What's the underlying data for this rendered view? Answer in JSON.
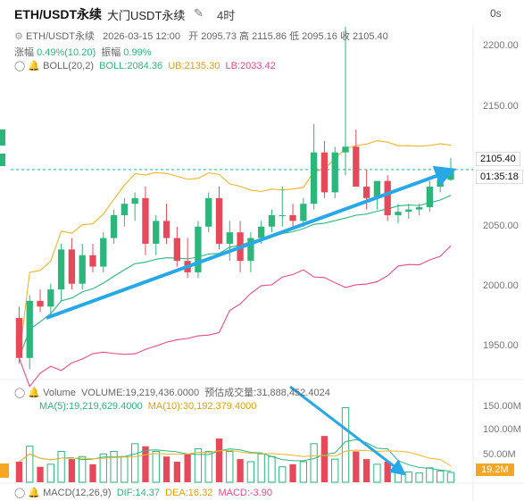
{
  "header": {
    "symbol": "ETH/USDT永续",
    "exchange_label": "大门USDT永续",
    "interval": "4时",
    "seconds_label": "0s",
    "detail_symbol": "ETH/USDT永续",
    "date": "2026-03-15 12:00",
    "ohlc_text": "开 2095.73 高 2115.86 低 2095.16 收 2105.40",
    "change_label": "涨幅",
    "change_value": "0.49%(10.20)",
    "amplitude_label": "振幅",
    "amplitude_value": "0.99%"
  },
  "indicators": {
    "boll_label": "BOLL(20,2)",
    "boll_value": "BOLL:2084.36",
    "ub_value": "UB:2135.30",
    "lb_value": "LB:2033.42",
    "volume_label": "Volume",
    "volume_value": "VOLUME:19,219,436.0000",
    "est_volume": "预估成交量:31,888,452.4024",
    "ma5": "MA(5):19,219,629.4000",
    "ma10": "MA(10):30,192,379.4000",
    "macd_label": "MACD(12,26,9)",
    "dif": "DIF:14.37",
    "dea": "DEA:16.32",
    "macd": "MACD:-3.90"
  },
  "price_axis": {
    "ticks": [
      "2200.00",
      "2150.00",
      "2100.00",
      "2050.00",
      "2000.00",
      "1950.00"
    ],
    "current_price": "2105.40",
    "countdown": "01:35:18"
  },
  "volume_axis": {
    "ticks": [
      "150.00M",
      "100.00M",
      "50.00M"
    ],
    "current_volume": "19.2M"
  },
  "colors": {
    "up": "#2db67c",
    "down": "#e64a5a",
    "boll_mid": "#2db67c",
    "boll_upper": "#f0b429",
    "boll_lower": "#e64a88",
    "arrow": "#29a8e8"
  },
  "chart_data": {
    "type": "candlestick",
    "candles": [
      {
        "o": 1975,
        "h": 1985,
        "l": 1935,
        "c": 1940,
        "v": 40
      },
      {
        "o": 1940,
        "h": 1995,
        "l": 1930,
        "c": 1990,
        "v": 70
      },
      {
        "o": 1990,
        "h": 2000,
        "l": 1980,
        "c": 1985,
        "v": 30
      },
      {
        "o": 1985,
        "h": 2005,
        "l": 1975,
        "c": 2000,
        "v": 35
      },
      {
        "o": 2000,
        "h": 2040,
        "l": 1990,
        "c": 2035,
        "v": 60
      },
      {
        "o": 2035,
        "h": 2045,
        "l": 2000,
        "c": 2005,
        "v": 45
      },
      {
        "o": 2005,
        "h": 2040,
        "l": 2000,
        "c": 2030,
        "v": 50
      },
      {
        "o": 2030,
        "h": 2040,
        "l": 2015,
        "c": 2020,
        "v": 35
      },
      {
        "o": 2020,
        "h": 2050,
        "l": 2015,
        "c": 2045,
        "v": 55
      },
      {
        "o": 2045,
        "h": 2070,
        "l": 2040,
        "c": 2065,
        "v": 60
      },
      {
        "o": 2065,
        "h": 2080,
        "l": 2055,
        "c": 2075,
        "v": 50
      },
      {
        "o": 2075,
        "h": 2085,
        "l": 2060,
        "c": 2080,
        "v": 75
      },
      {
        "o": 2080,
        "h": 2090,
        "l": 2030,
        "c": 2040,
        "v": 70
      },
      {
        "o": 2040,
        "h": 2065,
        "l": 2030,
        "c": 2060,
        "v": 60
      },
      {
        "o": 2060,
        "h": 2075,
        "l": 2040,
        "c": 2045,
        "v": 50
      },
      {
        "o": 2045,
        "h": 2055,
        "l": 2020,
        "c": 2025,
        "v": 40
      },
      {
        "o": 2025,
        "h": 2045,
        "l": 2010,
        "c": 2015,
        "v": 55
      },
      {
        "o": 2015,
        "h": 2060,
        "l": 2010,
        "c": 2055,
        "v": 65
      },
      {
        "o": 2055,
        "h": 2085,
        "l": 2050,
        "c": 2080,
        "v": 60
      },
      {
        "o": 2080,
        "h": 2090,
        "l": 2035,
        "c": 2040,
        "v": 85
      },
      {
        "o": 2040,
        "h": 2060,
        "l": 2025,
        "c": 2050,
        "v": 60
      },
      {
        "o": 2050,
        "h": 2060,
        "l": 2015,
        "c": 2025,
        "v": 45
      },
      {
        "o": 2025,
        "h": 2050,
        "l": 2015,
        "c": 2045,
        "v": 40
      },
      {
        "o": 2045,
        "h": 2060,
        "l": 2040,
        "c": 2055,
        "v": 55
      },
      {
        "o": 2055,
        "h": 2070,
        "l": 2050,
        "c": 2065,
        "v": 50
      },
      {
        "o": 2065,
        "h": 2090,
        "l": 2055,
        "c": 2065,
        "v": 30
      },
      {
        "o": 2065,
        "h": 2075,
        "l": 2055,
        "c": 2060,
        "v": 35
      },
      {
        "o": 2060,
        "h": 2080,
        "l": 2055,
        "c": 2075,
        "v": 40
      },
      {
        "o": 2075,
        "h": 2145,
        "l": 2070,
        "c": 2120,
        "v": 75
      },
      {
        "o": 2120,
        "h": 2130,
        "l": 2080,
        "c": 2085,
        "v": 90
      },
      {
        "o": 2085,
        "h": 2125,
        "l": 2080,
        "c": 2120,
        "v": 45
      },
      {
        "o": 2120,
        "h": 2230,
        "l": 2100,
        "c": 2125,
        "v": 145
      },
      {
        "o": 2125,
        "h": 2140,
        "l": 2090,
        "c": 2090,
        "v": 60
      },
      {
        "o": 2090,
        "h": 2105,
        "l": 2070,
        "c": 2080,
        "v": 45
      },
      {
        "o": 2080,
        "h": 2095,
        "l": 2070,
        "c": 2095,
        "v": 35
      },
      {
        "o": 2095,
        "h": 2100,
        "l": 2060,
        "c": 2065,
        "v": 40
      },
      {
        "o": 2065,
        "h": 2075,
        "l": 2058,
        "c": 2068,
        "v": 30
      },
      {
        "o": 2068,
        "h": 2075,
        "l": 2062,
        "c": 2070,
        "v": 20
      },
      {
        "o": 2070,
        "h": 2075,
        "l": 2065,
        "c": 2072,
        "v": 18
      },
      {
        "o": 2072,
        "h": 2095,
        "l": 2068,
        "c": 2090,
        "v": 28
      },
      {
        "o": 2090,
        "h": 2105,
        "l": 2085,
        "c": 2096,
        "v": 22
      },
      {
        "o": 2096,
        "h": 2115,
        "l": 2095,
        "c": 2105,
        "v": 19
      }
    ],
    "ylim": [
      1925,
      2230
    ],
    "volume_ylim": [
      0,
      165
    ]
  }
}
